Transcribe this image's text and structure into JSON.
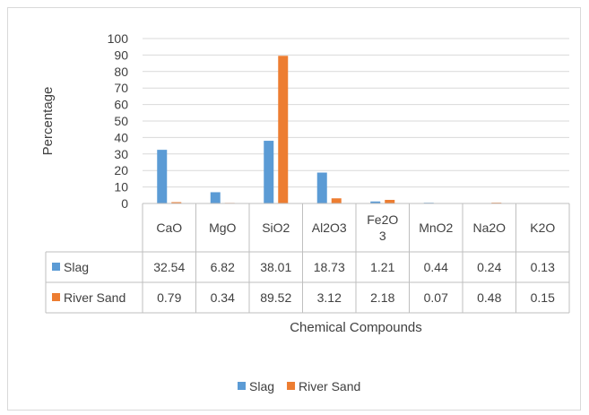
{
  "chart_data": {
    "type": "bar",
    "categories": [
      "CaO",
      "MgO",
      "SiO2",
      "Al2O3",
      "Fe2O3",
      "MnO2",
      "Na2O",
      "K2O"
    ],
    "category_labels": [
      [
        "CaO"
      ],
      [
        "MgO"
      ],
      [
        "SiO2"
      ],
      [
        "Al2O3"
      ],
      [
        "Fe2O",
        "3"
      ],
      [
        "MnO2"
      ],
      [
        "Na2O"
      ],
      [
        "K2O"
      ]
    ],
    "series": [
      {
        "name": "Slag",
        "color": "#5b9bd5",
        "values": [
          32.54,
          6.82,
          38.01,
          18.73,
          1.21,
          0.44,
          0.24,
          0.13
        ],
        "value_labels": [
          "32.54",
          "6.82",
          "38.01",
          "18.73",
          "1.21",
          "0.44",
          "0.24",
          "0.13"
        ]
      },
      {
        "name": "River Sand",
        "color": "#ed7d31",
        "values": [
          0.79,
          0.34,
          89.52,
          3.12,
          2.18,
          0.07,
          0.48,
          0.15
        ],
        "value_labels": [
          "0.79",
          "0.34",
          "89.52",
          "3.12",
          "2.18",
          "0.07",
          "0.48",
          "0.15"
        ]
      }
    ],
    "xlabel": "Chemical Compounds",
    "ylabel": "Percentage",
    "ylim": [
      0,
      100
    ],
    "yticks": [
      0,
      10,
      20,
      30,
      40,
      50,
      60,
      70,
      80,
      90,
      100
    ],
    "grid": true,
    "legend": "bottom",
    "data_table": true
  }
}
